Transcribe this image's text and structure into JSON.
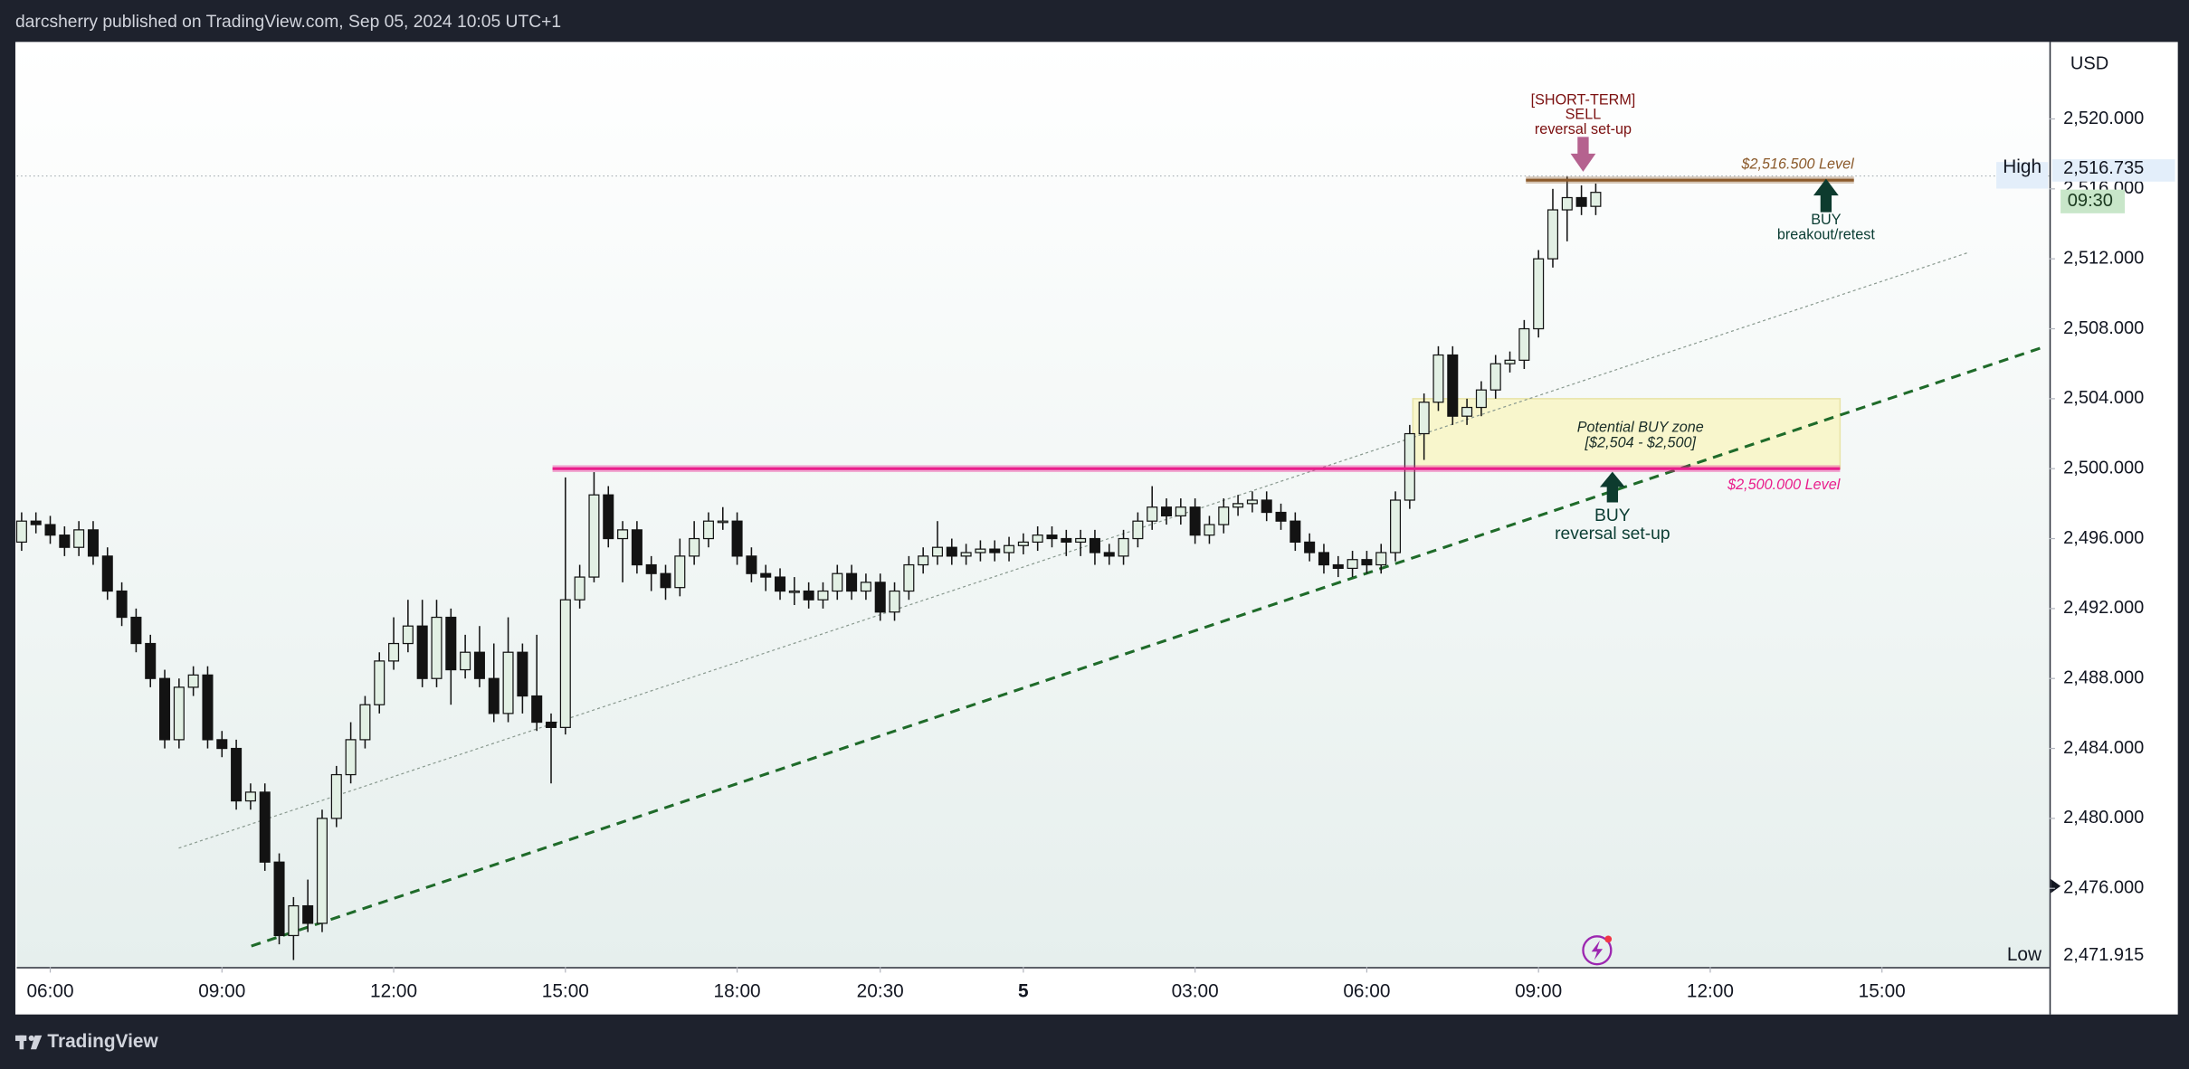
{
  "chart_data": {
    "type": "candlestick",
    "header": "darcsherry published on TradingView.com, Sep 05, 2024 10:05 UTC+1",
    "brand": "TradingView",
    "currency": "USD",
    "open": [
      2495.8,
      2497.0,
      2496.8,
      2496.2,
      2495.5,
      2496.5,
      2495.0,
      2493.0,
      2491.5,
      2490.0,
      2488.0,
      2484.5,
      2487.5,
      2488.2,
      2484.5,
      2484.0,
      2481.0,
      2481.5,
      2477.5,
      2473.3,
      2475.0,
      2474.0,
      2480.0,
      2482.5,
      2484.5,
      2486.5,
      2489.0,
      2490.0,
      2491.0,
      2488.0,
      2491.5,
      2488.5,
      2489.5,
      2488.0,
      2486.0,
      2489.5,
      2487.0,
      2485.5,
      2485.2,
      2492.5,
      2493.8,
      2498.5,
      2496.0,
      2496.5,
      2494.5,
      2494.0,
      2493.2,
      2495.0,
      2496.0,
      2497.0,
      2497.0,
      2495.0,
      2494.0,
      2493.8,
      2493.0,
      2493.0,
      2492.5,
      2493.0,
      2494.0,
      2493.0,
      2493.5,
      2491.8,
      2493.0,
      2494.5,
      2495.0,
      2495.5,
      2495.0,
      2495.2,
      2495.4,
      2495.2,
      2495.6,
      2495.8,
      2496.2,
      2496.0,
      2495.8,
      2496.0,
      2495.2,
      2495.0,
      2496.0,
      2497.0,
      2497.8,
      2497.3,
      2497.8,
      2496.2,
      2496.8,
      2497.8,
      2498.0,
      2498.2,
      2497.5,
      2497.0,
      2495.8,
      2495.2,
      2494.5,
      2494.3,
      2494.8,
      2494.5,
      2495.2,
      2498.2,
      2502.0,
      2503.8,
      2506.5,
      2503.0,
      2503.5,
      2504.5,
      2506.0,
      2506.2,
      2508.0,
      2512.0,
      2514.8,
      2515.5,
      2515.0
    ],
    "high": [
      2497.5,
      2497.5,
      2497.3,
      2496.7,
      2497.0,
      2497.0,
      2495.5,
      2493.5,
      2492.0,
      2490.5,
      2488.5,
      2488.0,
      2488.7,
      2488.7,
      2485.0,
      2484.5,
      2482.0,
      2482.0,
      2478.0,
      2475.5,
      2476.5,
      2480.5,
      2483.0,
      2485.5,
      2487.0,
      2489.5,
      2491.5,
      2492.5,
      2492.5,
      2492.5,
      2492.0,
      2490.5,
      2491.0,
      2490.0,
      2491.5,
      2490.0,
      2490.5,
      2486.0,
      2499.5,
      2494.5,
      2499.8,
      2499.0,
      2497.0,
      2497.0,
      2495.0,
      2494.5,
      2496.0,
      2497.0,
      2497.5,
      2497.8,
      2497.5,
      2495.5,
      2494.5,
      2494.3,
      2493.8,
      2493.5,
      2493.5,
      2494.5,
      2494.5,
      2494.0,
      2494.0,
      2493.5,
      2495.0,
      2495.5,
      2497.0,
      2496.0,
      2495.7,
      2495.9,
      2495.9,
      2496.1,
      2496.3,
      2496.7,
      2496.7,
      2496.5,
      2496.5,
      2496.5,
      2495.7,
      2496.5,
      2497.5,
      2499.0,
      2498.3,
      2498.3,
      2498.3,
      2497.3,
      2498.3,
      2498.5,
      2498.7,
      2498.7,
      2498.0,
      2497.5,
      2496.3,
      2495.7,
      2495.0,
      2495.3,
      2495.3,
      2495.7,
      2498.7,
      2502.5,
      2504.3,
      2507.0,
      2507.0,
      2504.0,
      2505.0,
      2506.5,
      2506.7,
      2508.5,
      2512.5,
      2516.0,
      2516.7,
      2516.2,
      2516.3
    ],
    "low": [
      2495.3,
      2496.3,
      2495.7,
      2495.0,
      2495.0,
      2494.5,
      2492.5,
      2491.0,
      2489.5,
      2487.5,
      2484.0,
      2484.0,
      2487.0,
      2484.0,
      2483.5,
      2480.5,
      2480.5,
      2477.0,
      2472.8,
      2471.9,
      2473.5,
      2473.5,
      2479.5,
      2482.0,
      2484.0,
      2486.0,
      2488.5,
      2489.5,
      2487.5,
      2487.5,
      2486.5,
      2488.0,
      2487.5,
      2485.5,
      2485.5,
      2486.0,
      2485.0,
      2482.0,
      2484.8,
      2492.0,
      2493.5,
      2495.5,
      2493.5,
      2494.0,
      2493.0,
      2492.5,
      2492.7,
      2494.5,
      2495.5,
      2496.5,
      2494.5,
      2493.5,
      2493.0,
      2492.5,
      2492.2,
      2492.0,
      2492.0,
      2492.5,
      2492.5,
      2492.5,
      2491.3,
      2491.3,
      2492.5,
      2494.0,
      2494.5,
      2494.5,
      2494.5,
      2494.7,
      2494.7,
      2494.7,
      2495.1,
      2495.3,
      2495.5,
      2495.0,
      2495.0,
      2494.5,
      2494.5,
      2494.5,
      2495.5,
      2496.5,
      2496.8,
      2496.8,
      2495.7,
      2495.7,
      2496.3,
      2497.3,
      2497.5,
      2497.0,
      2496.5,
      2495.3,
      2494.7,
      2494.0,
      2493.8,
      2493.8,
      2494.0,
      2494.0,
      2494.7,
      2497.7,
      2500.5,
      2503.3,
      2502.5,
      2502.5,
      2503.0,
      2504.0,
      2505.5,
      2505.7,
      2507.5,
      2511.5,
      2513.0,
      2514.5,
      2514.5
    ],
    "close": [
      2497.0,
      2496.8,
      2496.2,
      2495.5,
      2496.5,
      2495.0,
      2493.0,
      2491.5,
      2490.0,
      2488.0,
      2484.5,
      2487.5,
      2488.2,
      2484.5,
      2484.0,
      2481.0,
      2481.5,
      2477.5,
      2473.3,
      2475.0,
      2474.0,
      2480.0,
      2482.5,
      2484.5,
      2486.5,
      2489.0,
      2490.0,
      2491.0,
      2488.0,
      2491.5,
      2488.5,
      2489.5,
      2488.0,
      2486.0,
      2489.5,
      2487.0,
      2485.5,
      2485.2,
      2492.5,
      2493.8,
      2498.5,
      2496.0,
      2496.5,
      2494.5,
      2494.0,
      2493.2,
      2495.0,
      2496.0,
      2497.0,
      2497.0,
      2495.0,
      2494.0,
      2493.8,
      2493.0,
      2493.0,
      2492.5,
      2493.0,
      2494.0,
      2493.0,
      2493.5,
      2491.8,
      2493.0,
      2494.5,
      2495.0,
      2495.5,
      2495.0,
      2495.2,
      2495.4,
      2495.2,
      2495.6,
      2495.8,
      2496.2,
      2496.0,
      2495.8,
      2496.0,
      2495.2,
      2495.0,
      2496.0,
      2497.0,
      2497.8,
      2497.3,
      2497.8,
      2496.2,
      2496.8,
      2497.8,
      2498.0,
      2498.2,
      2497.5,
      2497.0,
      2495.8,
      2495.2,
      2494.5,
      2494.3,
      2494.8,
      2494.5,
      2495.2,
      2498.2,
      2502.0,
      2503.8,
      2506.5,
      2503.0,
      2503.5,
      2504.5,
      2506.0,
      2506.2,
      2508.0,
      2512.0,
      2514.8,
      2515.5,
      2515.0,
      2515.8
    ],
    "up_color": "#e2f0e4",
    "down_color": "#131313",
    "xlim": [
      -0.34,
      141.7
    ],
    "xticks": [
      {
        "value": 2,
        "label": "06:00"
      },
      {
        "value": 14,
        "label": "09:00"
      },
      {
        "value": 26,
        "label": "12:00"
      },
      {
        "value": 38,
        "label": "15:00"
      },
      {
        "value": 50,
        "label": "18:00"
      },
      {
        "value": 60,
        "label": "20:30"
      },
      {
        "value": 70,
        "label": "5"
      },
      {
        "value": 82,
        "label": "03:00"
      },
      {
        "value": 94,
        "label": "06:00"
      },
      {
        "value": 106,
        "label": "09:00"
      },
      {
        "value": 118,
        "label": "12:00"
      },
      {
        "value": 130,
        "label": "15:00"
      }
    ],
    "ylim": [
      2471.5,
      2524.4
    ],
    "yticks": [
      {
        "value": 2476,
        "label": "2,476.000"
      },
      {
        "value": 2480,
        "label": "2,480.000"
      },
      {
        "value": 2484,
        "label": "2,484.000"
      },
      {
        "value": 2488,
        "label": "2,488.000"
      },
      {
        "value": 2492,
        "label": "2,492.000"
      },
      {
        "value": 2496,
        "label": "2,496.000"
      },
      {
        "value": 2500,
        "label": "2,500.000"
      },
      {
        "value": 2504,
        "label": "2,504.000"
      },
      {
        "value": 2508,
        "label": "2,508.000"
      },
      {
        "value": 2512,
        "label": "2,512.000"
      },
      {
        "value": 2516,
        "label": "2,516.000"
      },
      {
        "value": 2520,
        "label": "2,520.000"
      }
    ],
    "grid": false,
    "high_marker": {
      "label": "High",
      "value": 2516.735,
      "value_label": "2,516.735"
    },
    "low_marker": {
      "label": "Low",
      "value": 2471.915,
      "value_label": "2,471.915"
    },
    "countdown": "09:30",
    "levels": [
      {
        "value": 2516.5,
        "label": "$2,516.500 Level",
        "color": "#8b5a2b",
        "xlim": [
          105.12,
          128.04
        ]
      },
      {
        "value": 2500,
        "label": "$2,500.000 Level",
        "color": "#e91e8c",
        "xlim": [
          37.1,
          127.07
        ]
      }
    ],
    "zone": {
      "label": [
        "Potential BUY zone",
        "[$2,504 - $2,500]"
      ],
      "ylim": [
        2500,
        2504
      ],
      "xlim": [
        97.22,
        127.07
      ],
      "color": "#f8f6cc"
    },
    "trendlines": [
      {
        "x": [
          16.05,
          141.1
        ],
        "y": [
          2472.7,
          2506.9
        ],
        "color": "#1f6b2a",
        "style": "dashed"
      },
      {
        "x": [
          10.98,
          136.0
        ],
        "y": [
          2478.3,
          2512.35
        ],
        "color": "#8a9a90",
        "style": "dotted"
      }
    ],
    "sell_note": [
      "[SHORT-TERM]",
      "SELL",
      "reversal set-up"
    ],
    "buy_breakout_note": [
      "BUY",
      "breakout/retest"
    ],
    "buy_reversal_note": [
      "BUY",
      "reversal set-up"
    ]
  }
}
